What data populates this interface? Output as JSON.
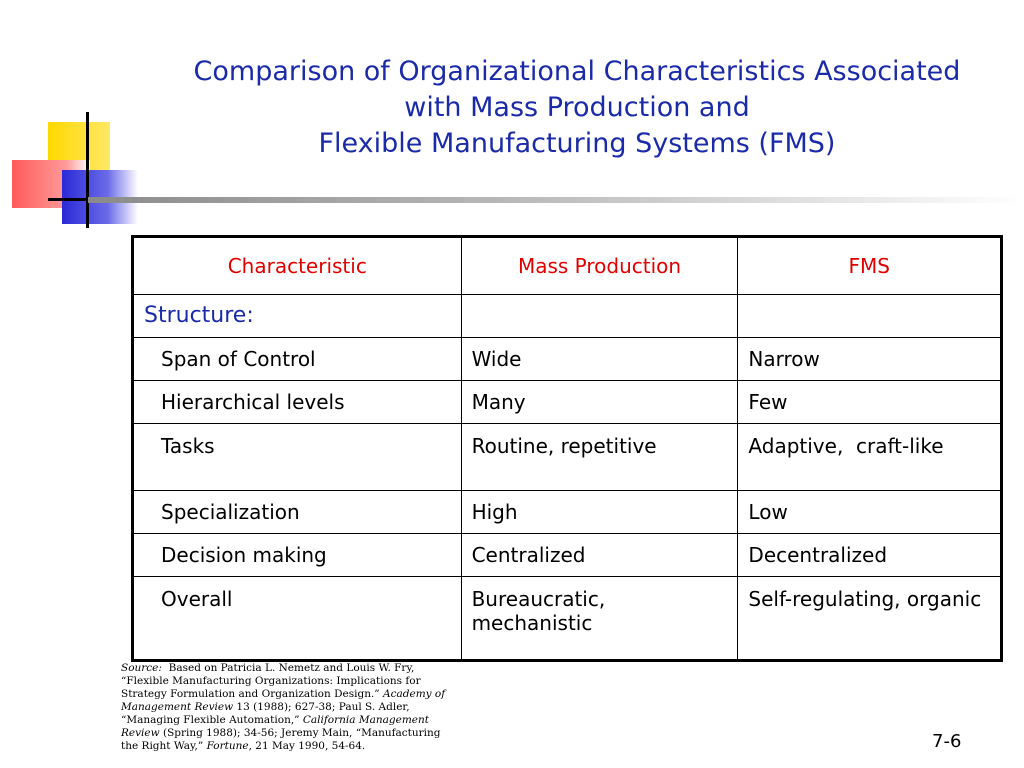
{
  "title": {
    "line1": "Comparison of Organizational Characteristics Associated",
    "line2": "with Mass Production and",
    "line3": "Flexible Manufacturing Systems (FMS)"
  },
  "table": {
    "headers": [
      "Characteristic",
      "Mass Production",
      "FMS"
    ],
    "section_label": "Structure:",
    "rows": [
      {
        "characteristic": "Span of Control",
        "mass": "Wide",
        "fms": "Narrow"
      },
      {
        "characteristic": "Hierarchical levels",
        "mass": "Many",
        "fms": "Few"
      },
      {
        "characteristic": "Tasks",
        "mass": "Routine, repetitive",
        "fms": "Adaptive,  craft-like"
      },
      {
        "characteristic": "Specialization",
        "mass": "High",
        "fms": "Low"
      },
      {
        "characteristic": "Decision making",
        "mass": "Centralized",
        "fms": "Decentralized"
      },
      {
        "characteristic": "Overall",
        "mass": "Bureaucratic, mechanistic",
        "fms": "Self-regulating, organic"
      }
    ]
  },
  "source": {
    "label": "Source:",
    "text1": "Based on Patricia L. Nemetz and Louis W. Fry, “Flexible Manufacturing Organizations:  Implications for Strategy Formulation and Organization Design.”",
    "journal1": "Academy of Management Review",
    "text2": "13 (1988); 627-38; Paul S. Adler, “Managing Flexible Automation,”",
    "journal2": "California Management Review",
    "text3": "(Spring 1988); 34-56; Jeremy Main, “Manufacturing the Right Way,”",
    "journal3": "Fortune",
    "text4": ", 21 May 1990, 54-64."
  },
  "page_number": "7-6",
  "colors": {
    "title": "#1a2aa8",
    "header": "#e00000",
    "yellow": "#ffd800",
    "red": "#ff3b3b",
    "blue": "#2a2ad8"
  }
}
